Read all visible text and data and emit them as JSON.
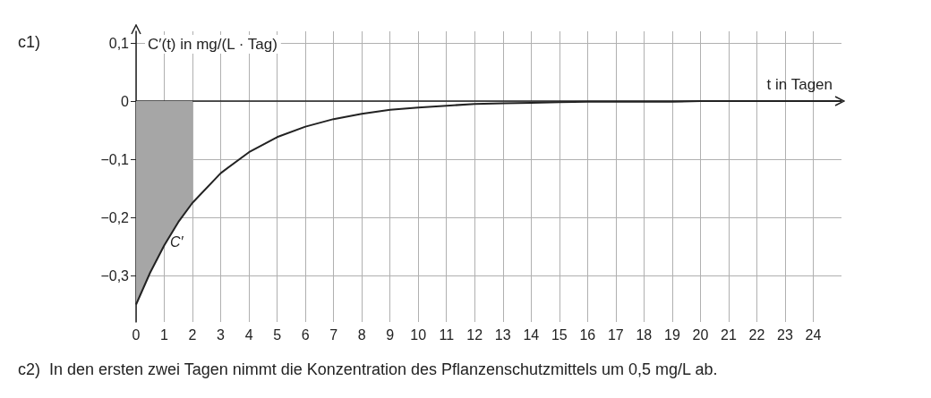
{
  "chart_data": {
    "type": "line",
    "annotations": [
      "c1)",
      "C′",
      "c2)  In den ersten zwei Tagen nimmt die Konzentration des Pflanzenschutzmittels um 0,5 mg/L ab."
    ],
    "ylabel": "C′(t) in mg/(L · Tag)",
    "xlabel": "t in Tagen",
    "series": [
      {
        "type": "area",
        "color": "#a6a6a6",
        "x": [
          0,
          0.5,
          1,
          1.5,
          2
        ],
        "values": [
          -0.35,
          -0.295,
          -0.248,
          -0.208,
          -0.175
        ]
      },
      {
        "color": "#222222",
        "x": [
          0,
          0.5,
          1,
          1.5,
          2,
          3,
          4,
          5,
          6,
          7,
          8,
          9,
          10,
          11,
          12,
          13,
          14,
          15,
          16,
          17,
          18,
          19,
          20,
          21,
          22,
          23,
          24,
          25
        ],
        "values": [
          -0.35,
          -0.295,
          -0.248,
          -0.208,
          -0.175,
          -0.124,
          -0.088,
          -0.062,
          -0.044,
          -0.031,
          -0.022,
          -0.015,
          -0.011,
          -0.008,
          -0.005,
          -0.004,
          -0.003,
          -0.002,
          -0.001,
          -0.001,
          -0.001,
          -0.001,
          0,
          0,
          0,
          0,
          0,
          0
        ]
      }
    ],
    "xlim": [
      0,
      25
    ],
    "xticks": [
      0,
      1,
      2,
      3,
      4,
      5,
      6,
      7,
      8,
      9,
      10,
      11,
      12,
      13,
      14,
      15,
      16,
      17,
      18,
      19,
      20,
      21,
      22,
      23,
      24
    ],
    "ylim": [
      -0.38,
      0.12
    ],
    "yticks": [
      {
        "value": 0.1,
        "label": "0,1"
      },
      0,
      {
        "value": -0.1,
        "label": "−0,1"
      },
      {
        "value": -0.2,
        "label": "−0,2"
      },
      {
        "value": -0.3,
        "label": "−0,3"
      }
    ],
    "grid": true,
    "marker": "none",
    "line_style": "solid"
  }
}
